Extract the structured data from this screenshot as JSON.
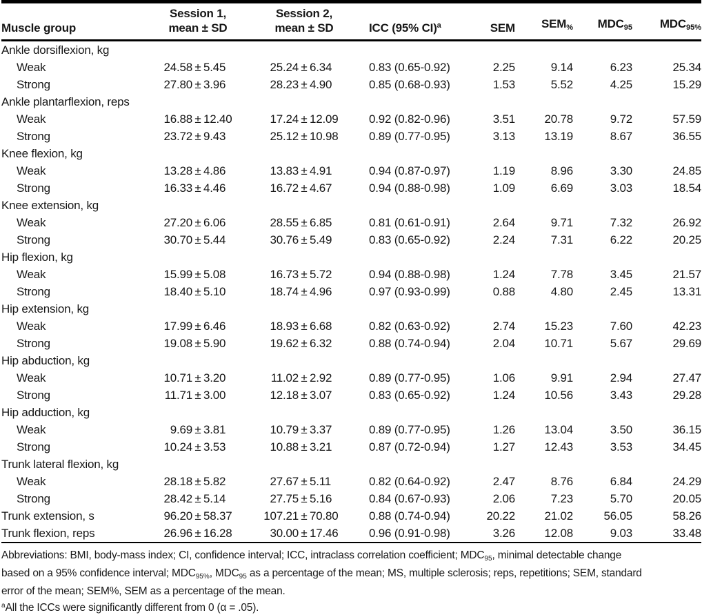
{
  "table": {
    "pm": "±",
    "columns": {
      "muscle_group": "Muscle group",
      "session1": {
        "line1": "Session 1,",
        "line2": "mean ± SD"
      },
      "session2": {
        "line1": "Session 2,",
        "line2": "mean ± SD"
      },
      "icc": {
        "label": "ICC (95% CI)",
        "sup": "a"
      },
      "sem": "SEM",
      "sem_pct": {
        "base": "SEM",
        "sub": "%"
      },
      "mdc95": {
        "base": "MDC",
        "sub": "95"
      },
      "mdc95_pct": {
        "base": "MDC",
        "sub": "95%"
      }
    },
    "rows": [
      {
        "type": "group",
        "label": "Ankle dorsiflexion, kg"
      },
      {
        "type": "data",
        "indent": true,
        "label": "Weak",
        "s1_mean": "24.58",
        "s1_sd": "5.45",
        "s2_mean": "25.24",
        "s2_sd": "6.34",
        "icc": "0.83 (0.65-0.92)",
        "sem": "2.25",
        "sem_pct": "9.14",
        "mdc95": "6.23",
        "mdc95_pct": "25.34"
      },
      {
        "type": "data",
        "indent": true,
        "label": "Strong",
        "s1_mean": "27.80",
        "s1_sd": "3.96",
        "s2_mean": "28.23",
        "s2_sd": "4.90",
        "icc": "0.85 (0.68-0.93)",
        "sem": "1.53",
        "sem_pct": "5.52",
        "mdc95": "4.25",
        "mdc95_pct": "15.29"
      },
      {
        "type": "group",
        "label": "Ankle plantarflexion, reps"
      },
      {
        "type": "data",
        "indent": true,
        "label": "Weak",
        "s1_mean": "16.88",
        "s1_sd": "12.40",
        "s2_mean": "17.24",
        "s2_sd": "12.09",
        "icc": "0.92 (0.82-0.96)",
        "sem": "3.51",
        "sem_pct": "20.78",
        "mdc95": "9.72",
        "mdc95_pct": "57.59"
      },
      {
        "type": "data",
        "indent": true,
        "label": "Strong",
        "s1_mean": "23.72",
        "s1_sd": "9.43",
        "s2_mean": "25.12",
        "s2_sd": "10.98",
        "icc": "0.89 (0.77-0.95)",
        "sem": "3.13",
        "sem_pct": "13.19",
        "mdc95": "8.67",
        "mdc95_pct": "36.55"
      },
      {
        "type": "group",
        "label": "Knee flexion, kg"
      },
      {
        "type": "data",
        "indent": true,
        "label": "Weak",
        "s1_mean": "13.28",
        "s1_sd": "4.86",
        "s2_mean": "13.83",
        "s2_sd": "4.91",
        "icc": "0.94 (0.87-0.97)",
        "sem": "1.19",
        "sem_pct": "8.96",
        "mdc95": "3.30",
        "mdc95_pct": "24.85"
      },
      {
        "type": "data",
        "indent": true,
        "label": "Strong",
        "s1_mean": "16.33",
        "s1_sd": "4.46",
        "s2_mean": "16.72",
        "s2_sd": "4.67",
        "icc": "0.94 (0.88-0.98)",
        "sem": "1.09",
        "sem_pct": "6.69",
        "mdc95": "3.03",
        "mdc95_pct": "18.54"
      },
      {
        "type": "group",
        "label": "Knee extension, kg"
      },
      {
        "type": "data",
        "indent": true,
        "label": "Weak",
        "s1_mean": "27.20",
        "s1_sd": "6.06",
        "s2_mean": "28.55",
        "s2_sd": "6.85",
        "icc": "0.81 (0.61-0.91)",
        "sem": "2.64",
        "sem_pct": "9.71",
        "mdc95": "7.32",
        "mdc95_pct": "26.92"
      },
      {
        "type": "data",
        "indent": true,
        "label": "Strong",
        "s1_mean": "30.70",
        "s1_sd": "5.44",
        "s2_mean": "30.76",
        "s2_sd": "5.49",
        "icc": "0.83 (0.65-0.92)",
        "sem": "2.24",
        "sem_pct": "7.31",
        "mdc95": "6.22",
        "mdc95_pct": "20.25"
      },
      {
        "type": "group",
        "label": "Hip flexion, kg"
      },
      {
        "type": "data",
        "indent": true,
        "label": "Weak",
        "s1_mean": "15.99",
        "s1_sd": "5.08",
        "s2_mean": "16.73",
        "s2_sd": "5.72",
        "icc": "0.94 (0.88-0.98)",
        "sem": "1.24",
        "sem_pct": "7.78",
        "mdc95": "3.45",
        "mdc95_pct": "21.57"
      },
      {
        "type": "data",
        "indent": true,
        "label": "Strong",
        "s1_mean": "18.40",
        "s1_sd": "5.10",
        "s2_mean": "18.74",
        "s2_sd": "4.96",
        "icc": "0.97 (0.93-0.99)",
        "sem": "0.88",
        "sem_pct": "4.80",
        "mdc95": "2.45",
        "mdc95_pct": "13.31"
      },
      {
        "type": "group",
        "label": "Hip extension, kg"
      },
      {
        "type": "data",
        "indent": true,
        "label": "Weak",
        "s1_mean": "17.99",
        "s1_sd": "6.46",
        "s2_mean": "18.93",
        "s2_sd": "6.68",
        "icc": "0.82 (0.63-0.92)",
        "sem": "2.74",
        "sem_pct": "15.23",
        "mdc95": "7.60",
        "mdc95_pct": "42.23"
      },
      {
        "type": "data",
        "indent": true,
        "label": "Strong",
        "s1_mean": "19.08",
        "s1_sd": "5.90",
        "s2_mean": "19.62",
        "s2_sd": "6.32",
        "icc": "0.88 (0.74-0.94)",
        "sem": "2.04",
        "sem_pct": "10.71",
        "mdc95": "5.67",
        "mdc95_pct": "29.69"
      },
      {
        "type": "group",
        "label": "Hip abduction, kg"
      },
      {
        "type": "data",
        "indent": true,
        "label": "Weak",
        "s1_mean": "10.71",
        "s1_sd": "3.20",
        "s2_mean": "11.02",
        "s2_sd": "2.92",
        "icc": "0.89 (0.77-0.95)",
        "sem": "1.06",
        "sem_pct": "9.91",
        "mdc95": "2.94",
        "mdc95_pct": "27.47"
      },
      {
        "type": "data",
        "indent": true,
        "label": "Strong",
        "s1_mean": "11.71",
        "s1_sd": "3.00",
        "s2_mean": "12.18",
        "s2_sd": "3.07",
        "icc": "0.83 (0.65-0.92)",
        "sem": "1.24",
        "sem_pct": "10.56",
        "mdc95": "3.43",
        "mdc95_pct": "29.28"
      },
      {
        "type": "group",
        "label": "Hip adduction, kg"
      },
      {
        "type": "data",
        "indent": true,
        "label": "Weak",
        "s1_mean": "9.69",
        "s1_sd": "3.81",
        "s2_mean": "10.79",
        "s2_sd": "3.37",
        "icc": "0.89 (0.77-0.95)",
        "sem": "1.26",
        "sem_pct": "13.04",
        "mdc95": "3.50",
        "mdc95_pct": "36.15"
      },
      {
        "type": "data",
        "indent": true,
        "label": "Strong",
        "s1_mean": "10.24",
        "s1_sd": "3.53",
        "s2_mean": "10.88",
        "s2_sd": "3.21",
        "icc": "0.87 (0.72-0.94)",
        "sem": "1.27",
        "sem_pct": "12.43",
        "mdc95": "3.53",
        "mdc95_pct": "34.45"
      },
      {
        "type": "group",
        "label": "Trunk lateral flexion, kg"
      },
      {
        "type": "data",
        "indent": true,
        "label": "Weak",
        "s1_mean": "28.18",
        "s1_sd": "5.82",
        "s2_mean": "27.67",
        "s2_sd": "5.11",
        "icc": "0.82 (0.64-0.92)",
        "sem": "2.47",
        "sem_pct": "8.76",
        "mdc95": "6.84",
        "mdc95_pct": "24.29"
      },
      {
        "type": "data",
        "indent": true,
        "label": "Strong",
        "s1_mean": "28.42",
        "s1_sd": "5.14",
        "s2_mean": "27.75",
        "s2_sd": "5.16",
        "icc": "0.84 (0.67-0.93)",
        "sem": "2.06",
        "sem_pct": "7.23",
        "mdc95": "5.70",
        "mdc95_pct": "20.05"
      },
      {
        "type": "data",
        "indent": false,
        "label": "Trunk extension, s",
        "s1_mean": "96.20",
        "s1_sd": "58.37",
        "s2_mean": "107.21",
        "s2_sd": "70.80",
        "icc": "0.88 (0.74-0.94)",
        "sem": "20.22",
        "sem_pct": "21.02",
        "mdc95": "56.05",
        "mdc95_pct": "58.26"
      },
      {
        "type": "data",
        "indent": false,
        "label": "Trunk flexion, reps",
        "s1_mean": "26.96",
        "s1_sd": "16.28",
        "s2_mean": "30.00",
        "s2_sd": "17.46",
        "icc": "0.96 (0.91-0.98)",
        "sem": "3.26",
        "sem_pct": "12.08",
        "mdc95": "9.03",
        "mdc95_pct": "33.48"
      }
    ]
  },
  "footnotes": {
    "lines": [
      [
        {
          "t": "Abbreviations: BMI, body-mass index; CI, confidence interval; ICC, intraclass correlation coefficient; MDC"
        },
        {
          "t": "95",
          "sub": true
        },
        {
          "t": ", minimal detectable change"
        }
      ],
      [
        {
          "t": "based on a 95% confidence interval; MDC"
        },
        {
          "t": "95%",
          "sub": true
        },
        {
          "t": ", MDC"
        },
        {
          "t": "95",
          "sub": true
        },
        {
          "t": " as a percentage of the mean; MS, multiple sclerosis; reps, repetitions; SEM, standard"
        }
      ],
      [
        {
          "t": "error of the mean; SEM%, SEM as a percentage of the mean."
        }
      ],
      [
        {
          "t": "a",
          "sup": true
        },
        {
          "t": "All the ICCs were significantly different from 0 (α = .05)."
        }
      ]
    ]
  }
}
